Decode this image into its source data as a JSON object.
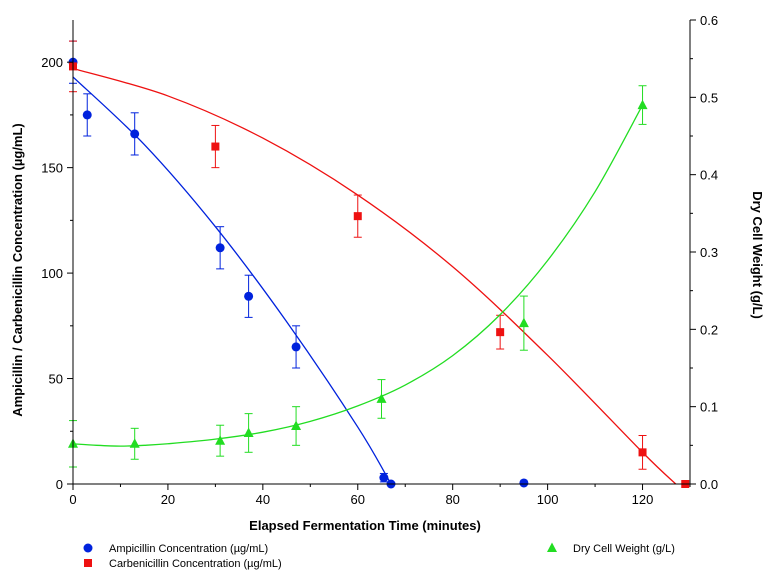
{
  "chart_data": {
    "type": "scatter",
    "xlabel": "Elapsed Fermentation Time (minutes)",
    "ylabel_left": "Ampicillin / Carbenicillin Concentration (µg/mL)",
    "ylabel_right": "Dry Cell Weight (g/L)",
    "xlim": [
      0,
      130
    ],
    "ylim_left": [
      0,
      220
    ],
    "ylim_right": [
      0,
      0.6
    ],
    "x_ticks": [
      "0",
      "20",
      "40",
      "60",
      "80",
      "100",
      "120"
    ],
    "y_left_ticks": [
      "0",
      "50",
      "100",
      "150",
      "200"
    ],
    "y_right_ticks": [
      "0.0",
      "0.1",
      "0.2",
      "0.3",
      "0.4",
      "0.5",
      "0.6"
    ],
    "grid": false,
    "legend_position": "bottom",
    "series": [
      {
        "name": "Ampicillin Concentration (µg/mL)",
        "axis": "left",
        "color": "#0022dd",
        "marker": "circle",
        "points": [
          {
            "x": 0,
            "y": 200,
            "err": 10
          },
          {
            "x": 3,
            "y": 175,
            "err": 10
          },
          {
            "x": 13,
            "y": 166,
            "err": 10
          },
          {
            "x": 31,
            "y": 112,
            "err": 10
          },
          {
            "x": 37,
            "y": 89,
            "err": 10
          },
          {
            "x": 47,
            "y": 65,
            "err": 10
          },
          {
            "x": 65.5,
            "y": 3,
            "err": 2
          },
          {
            "x": 67,
            "y": 0,
            "err": 0
          },
          {
            "x": 95,
            "y": 0.5,
            "err": 0
          }
        ],
        "fit": [
          [
            0,
            193
          ],
          [
            15,
            161
          ],
          [
            30,
            122
          ],
          [
            45,
            77
          ],
          [
            60,
            27
          ],
          [
            67,
            0
          ]
        ]
      },
      {
        "name": "Carbenicillin Concentration (µg/mL)",
        "axis": "left",
        "color": "#ee1111",
        "marker": "square",
        "points": [
          {
            "x": 0,
            "y": 198,
            "err": 12
          },
          {
            "x": 30,
            "y": 160,
            "err": 10
          },
          {
            "x": 60,
            "y": 127,
            "err": 10
          },
          {
            "x": 90,
            "y": 72,
            "err": 8
          },
          {
            "x": 120,
            "y": 15,
            "err": 8
          },
          {
            "x": 129,
            "y": 0,
            "err": 0
          }
        ],
        "fit": [
          [
            0,
            197
          ],
          [
            20,
            184
          ],
          [
            40,
            164
          ],
          [
            60,
            137
          ],
          [
            80,
            103
          ],
          [
            100,
            61
          ],
          [
            120,
            15
          ],
          [
            127,
            0
          ]
        ]
      },
      {
        "name": "Dry Cell Weight (g/L)",
        "axis": "right",
        "color": "#22dd22",
        "marker": "triangle",
        "points": [
          {
            "x": 0,
            "y": 0.052,
            "err": 0.03
          },
          {
            "x": 13,
            "y": 0.052,
            "err": 0.02
          },
          {
            "x": 31,
            "y": 0.056,
            "err": 0.02
          },
          {
            "x": 37,
            "y": 0.066,
            "err": 0.025
          },
          {
            "x": 47,
            "y": 0.075,
            "err": 0.025
          },
          {
            "x": 65,
            "y": 0.11,
            "err": 0.025
          },
          {
            "x": 95,
            "y": 0.208,
            "err": 0.035
          },
          {
            "x": 120,
            "y": 0.49,
            "err": 0.025
          }
        ],
        "fit": [
          [
            0,
            0.052
          ],
          [
            5,
            0.05
          ],
          [
            10,
            0.049
          ],
          [
            15,
            0.05
          ],
          [
            20,
            0.052
          ],
          [
            30,
            0.058
          ],
          [
            40,
            0.067
          ],
          [
            50,
            0.081
          ],
          [
            60,
            0.101
          ],
          [
            70,
            0.128
          ],
          [
            80,
            0.166
          ],
          [
            90,
            0.219
          ],
          [
            100,
            0.289
          ],
          [
            110,
            0.378
          ],
          [
            120,
            0.49
          ]
        ]
      }
    ]
  }
}
